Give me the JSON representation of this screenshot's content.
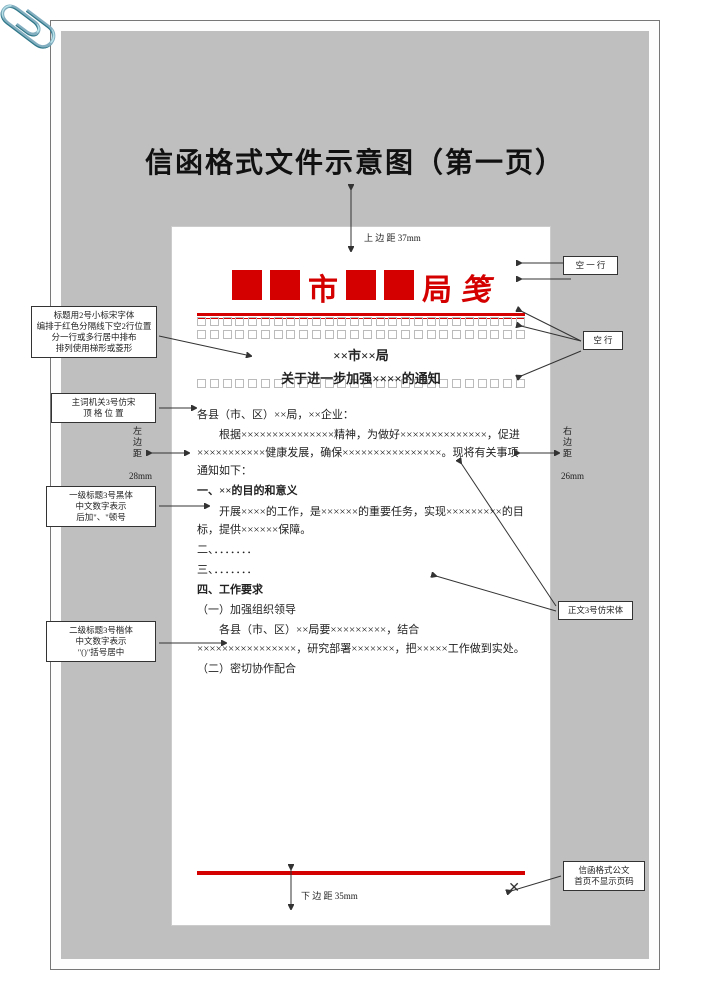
{
  "main_title": "信函格式文件示意图（第一页）",
  "letterhead": {
    "char1": "市",
    "char2": "局",
    "char3": "笺"
  },
  "colors": {
    "red": "#d40000",
    "grey_bg": "#bfbfbf",
    "box_border": "#bbbbbb",
    "text": "#222222"
  },
  "dimensions": {
    "top_margin": "上 边 距 37mm",
    "left_margin": "左 边 距 28mm",
    "right_margin": "右 边 距 26mm",
    "bottom_margin": "下 边 距 35mm"
  },
  "notes": {
    "blank_line_top": "空 一 行",
    "blank_line_side": "空 行",
    "title_note": "标题用2号小标宋字体\n编排于红色分隔线下空2行位置\n分一行或多行居中排布\n排列使用梯形或菱形",
    "main_org_note": "主词机关3号仿宋\n顶 格 位 置",
    "h1_note": "一级标题3号黑体\n中文数字表示\n后加\"、\"顿号",
    "h2_note": "二级标题3号楷体\n中文数字表示\n\"()\"括号居中",
    "body_font_note": "正文3号仿宋体",
    "footer_note": "信函格式公文\n首页不显示页码"
  },
  "body": {
    "title1": "××市××局",
    "title2": "关于进一步加强××××的通知",
    "addressee": "各县（市、区）××局，××企业：",
    "para1": "　　根据×××××××××××××××精神，为做好××××××××××××××，促进×××××××××××健康发展，确保××××××××××××××××。现将有关事项通知如下：",
    "h1": "一、××的目的和意义",
    "para2": "　　开展××××的工作，是××××××的重要任务，实现×××××××××的目标，提供××××××保障。",
    "h1b": "二、．．．．．．．",
    "h1c": "三、．．．．．．．",
    "h1d": "四、工作要求",
    "h2a": "（一）加强组织领导",
    "para3": "　　各县（市、区）××局要×××××××××，结合××××××××××××××××，研究部署×××××××，把×××××工作做到实处。",
    "h2b": "（二）密切协作配合"
  }
}
